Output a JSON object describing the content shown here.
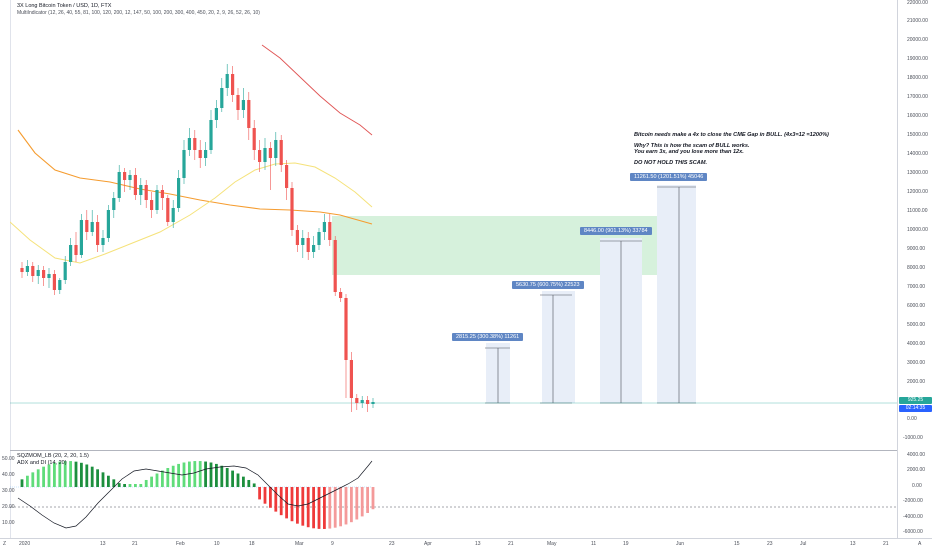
{
  "chart": {
    "title": "3X Long Bitcoin Token / USD, 1D, FTX",
    "indicator_label": "MultiIndicator (12, 26, 40, 55, 81, 100, 120, 200, 12, 147, 50, 100, 200, 300, 400, 450, 20, 2, 9, 26, 52, 26, 10)"
  },
  "price_axis": {
    "labels": [
      "22000.00",
      "21000.00",
      "20000.00",
      "19000.00",
      "18000.00",
      "17000.00",
      "16000.00",
      "15000.00",
      "14000.00",
      "13000.00",
      "12000.00",
      "11000.00",
      "10000.00",
      "9000.00",
      "8000.00",
      "7000.00",
      "6000.00",
      "5000.00",
      "4000.00",
      "3000.00",
      "2000.00",
      "1000.00",
      "0.00",
      "-1000.00"
    ],
    "last_price": "925.25",
    "countdown": "02:14:35",
    "tag_color": "#26a69a",
    "tag2_color": "#2962ff"
  },
  "time_axis": {
    "corner": "Z",
    "corner_right": "A",
    "labels": [
      "2020",
      "13",
      "21",
      "Feb",
      "10",
      "18",
      "Mar",
      "9",
      "23",
      "Apr",
      "13",
      "21",
      "May",
      "11",
      "19",
      "Jun",
      "15",
      "23",
      "Jul",
      "13",
      "21"
    ]
  },
  "annotations": {
    "note_lines": [
      "Bitcoin needs make a 4x to close the CME Gap in BULL. (4x3=12 =1200%)",
      "",
      "Why? This is how the scam of BULL works.",
      "You earn 3x, and you lose more than 12x.",
      "",
      "DO NOT HOLD THIS SCAM."
    ],
    "targets": [
      {
        "label": "2815.25 (300.38%) 11261"
      },
      {
        "label": "5630.75 (600.75%) 22523"
      },
      {
        "label": "8446.00 (901.13%) 33784"
      },
      {
        "label": "11261.50 (1201.51%) 45046"
      }
    ]
  },
  "indicator": {
    "line1": "SQZMOM_LB (20, 2, 20, 1.5)",
    "line2": "ADX and DI (14, 20)",
    "left_axis": [
      "50.00",
      "40.00",
      "30.00",
      "20.00",
      "10.00"
    ],
    "right_axis": [
      "4000.00",
      "2000.00",
      "0.00",
      "-2000.00",
      "-4000.00",
      "-6000.00"
    ]
  },
  "colors": {
    "up": "#26a69a",
    "down": "#ef5350",
    "gap_zone": "#c8ecd0",
    "ema_orange": "#f59c2f",
    "sma_yellow": "#f5e27a",
    "sma_red": "#e05454",
    "target_bg": "#e8eef8",
    "label_blue": "#5f86c4"
  }
}
